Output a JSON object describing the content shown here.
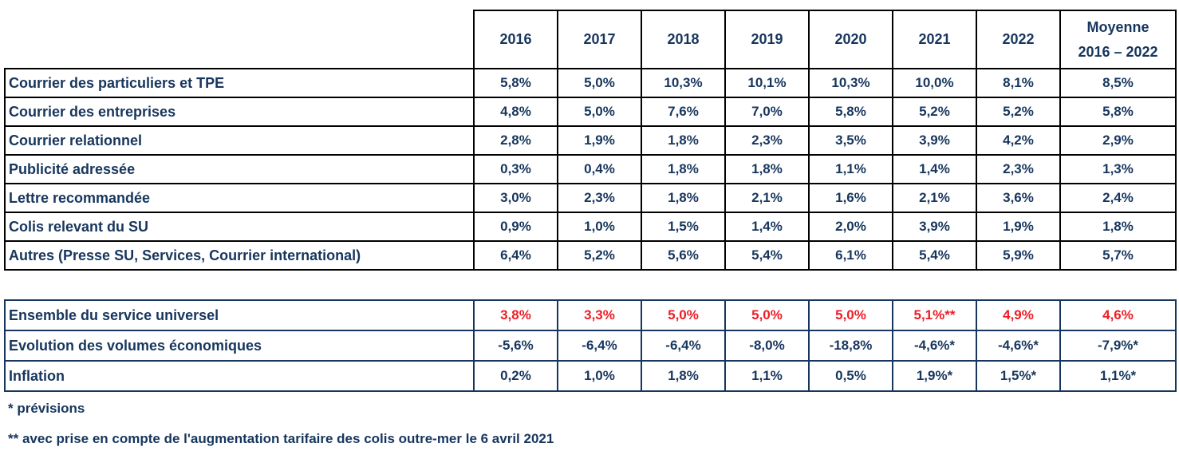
{
  "colors": {
    "text_navy": "#17365D",
    "value_red": "#EE1C25",
    "border_black": "#000000",
    "border_navy": "#17365D",
    "background": "#ffffff"
  },
  "header": {
    "years": [
      "2016",
      "2017",
      "2018",
      "2019",
      "2020",
      "2021",
      "2022"
    ],
    "moyenne_line1": "Moyenne",
    "moyenne_line2": "2016 – 2022"
  },
  "t1": {
    "rows": [
      {
        "label": "Courrier des particuliers et TPE",
        "values": [
          "5,8%",
          "5,0%",
          "10,3%",
          "10,1%",
          "10,3%",
          "10,0%",
          "8,1%",
          "8,5%"
        ]
      },
      {
        "label": "Courrier des entreprises",
        "values": [
          "4,8%",
          "5,0%",
          "7,6%",
          "7,0%",
          "5,8%",
          "5,2%",
          "5,2%",
          "5,8%"
        ]
      },
      {
        "label": "Courrier relationnel",
        "values": [
          "2,8%",
          "1,9%",
          "1,8%",
          "2,3%",
          "3,5%",
          "3,9%",
          "4,2%",
          "2,9%"
        ]
      },
      {
        "label": "Publicité adressée",
        "values": [
          "0,3%",
          "0,4%",
          "1,8%",
          "1,8%",
          "1,1%",
          "1,4%",
          "2,3%",
          "1,3%"
        ]
      },
      {
        "label": "Lettre recommandée",
        "values": [
          "3,0%",
          "2,3%",
          "1,8%",
          "2,1%",
          "1,6%",
          "2,1%",
          "3,6%",
          "2,4%"
        ]
      },
      {
        "label": "Colis relevant du SU",
        "values": [
          "0,9%",
          "1,0%",
          "1,5%",
          "1,4%",
          "2,0%",
          "3,9%",
          "1,9%",
          "1,8%"
        ]
      },
      {
        "label": "Autres (Presse SU, Services, Courrier international)",
        "values": [
          "6,4%",
          "5,2%",
          "5,6%",
          "5,4%",
          "6,1%",
          "5,4%",
          "5,9%",
          "5,7%"
        ]
      }
    ]
  },
  "t2": {
    "rows": [
      {
        "label": "Ensemble du service universel",
        "highlight": "red",
        "values": [
          "3,8%",
          "3,3%",
          "5,0%",
          "5,0%",
          "5,0%",
          "5,1%**",
          "4,9%",
          "4,6%"
        ]
      },
      {
        "label": "Evolution des volumes économiques",
        "highlight": "none",
        "values": [
          "-5,6%",
          "-6,4%",
          "-6,4%",
          "-8,0%",
          "-18,8%",
          "-4,6%*",
          "-4,6%*",
          "-7,9%*"
        ]
      },
      {
        "label": "Inflation",
        "highlight": "none",
        "values": [
          "0,2%",
          "1,0%",
          "1,8%",
          "1,1%",
          "0,5%",
          "1,9%*",
          "1,5%*",
          "1,1%*"
        ]
      }
    ]
  },
  "footnotes": {
    "line1": "* prévisions",
    "line2": "** avec prise en compte de l'augmentation tarifaire des colis outre-mer le 6 avril 2021"
  }
}
